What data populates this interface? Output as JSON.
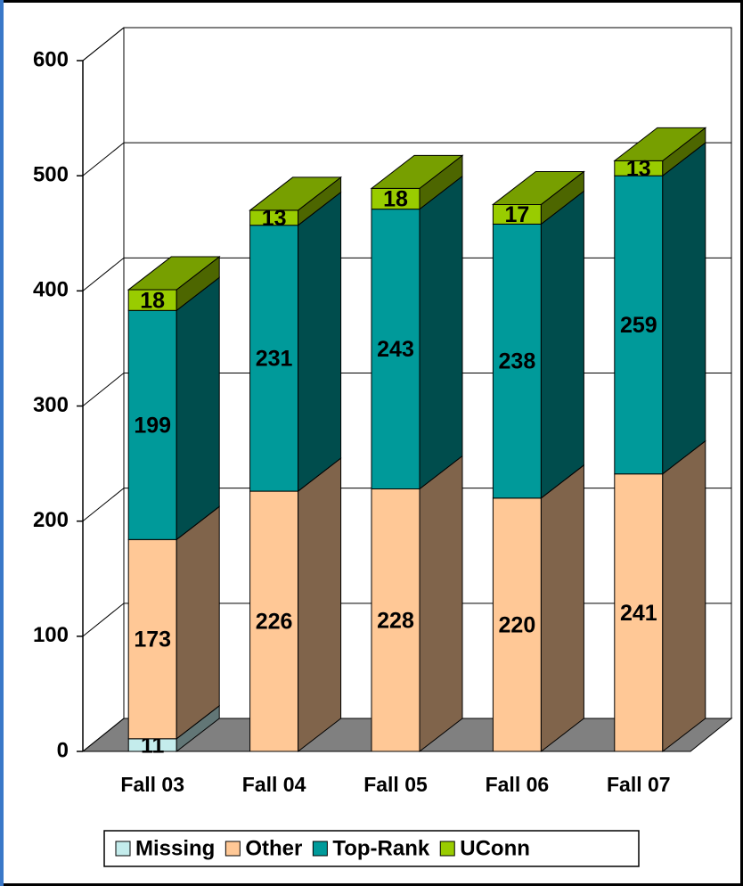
{
  "chart_data": {
    "type": "bar3d_stacked",
    "categories": [
      "Fall 03",
      "Fall 04",
      "Fall 05",
      "Fall 06",
      "Fall 07"
    ],
    "series": [
      {
        "name": "Missing",
        "color": "#c4ecec",
        "values": [
          11,
          null,
          null,
          null,
          null
        ]
      },
      {
        "name": "Other",
        "color": "#ffc896",
        "values": [
          173,
          226,
          228,
          220,
          241
        ]
      },
      {
        "name": "Top-Rank",
        "color": "#009a9a",
        "values": [
          199,
          231,
          243,
          238,
          259
        ]
      },
      {
        "name": "UConn",
        "color": "#99cc00",
        "values": [
          18,
          13,
          18,
          17,
          13
        ]
      }
    ],
    "ylim": [
      0,
      600
    ],
    "yticks": [
      0,
      100,
      200,
      300,
      400,
      500,
      600
    ],
    "grid": true,
    "legend": "bottom"
  }
}
